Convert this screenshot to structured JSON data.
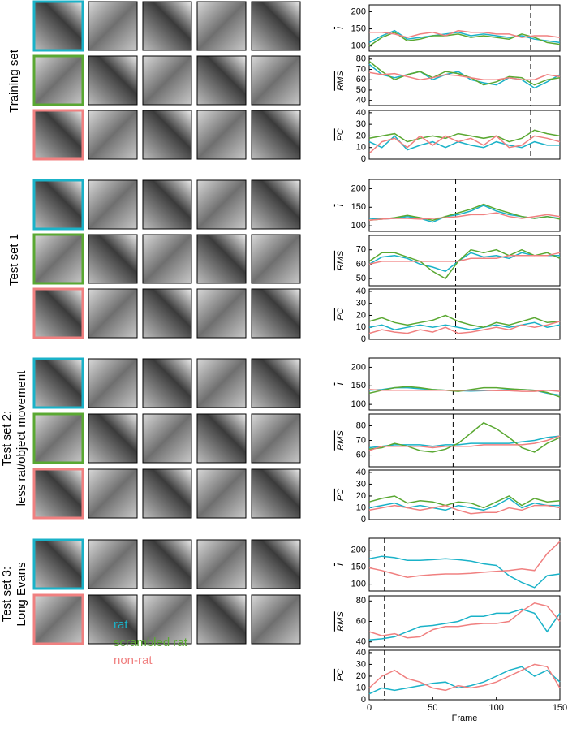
{
  "groups": [
    {
      "label": [
        "Training set"
      ],
      "borders": [
        "#1ab2c8",
        "#5aa832",
        "#f08080"
      ]
    },
    {
      "label": [
        "Test set 1"
      ],
      "borders": [
        "#1ab2c8",
        "#5aa832",
        "#f08080"
      ]
    },
    {
      "label": [
        "Test set 2:",
        "less rat/object movement"
      ],
      "borders": [
        "#1ab2c8",
        "#5aa832",
        "#f08080"
      ]
    },
    {
      "label": [
        "Test set 3:",
        "Long Evans"
      ],
      "borders": [
        "#1ab2c8",
        "#f08080"
      ]
    }
  ],
  "legend": {
    "items": [
      {
        "name": "rat",
        "color": "#1ab2c8"
      },
      {
        "name": "scrambled rat",
        "color": "#5aa832"
      },
      {
        "name": "non-rat",
        "color": "#f08080"
      }
    ]
  },
  "chart_data": [
    {
      "type": "line",
      "ylabel": "I",
      "x": [
        0,
        10,
        20,
        30,
        40,
        50,
        60,
        70,
        80,
        90,
        100,
        110,
        120,
        130,
        140,
        150
      ],
      "xlim": [
        0,
        150
      ],
      "ylim": [
        85,
        220
      ],
      "yticks": [
        100,
        150,
        200
      ],
      "markers": [
        127
      ],
      "series": [
        {
          "color": "#1ab2c8",
          "values": [
            110,
            130,
            145,
            120,
            125,
            130,
            135,
            140,
            130,
            135,
            130,
            125,
            130,
            120,
            115,
            110
          ]
        },
        {
          "color": "#5aa832",
          "values": [
            100,
            125,
            140,
            115,
            120,
            130,
            130,
            135,
            125,
            130,
            125,
            120,
            135,
            125,
            110,
            105
          ]
        },
        {
          "color": "#f08080",
          "values": [
            140,
            140,
            135,
            125,
            135,
            140,
            130,
            145,
            140,
            140,
            135,
            135,
            125,
            130,
            130,
            125
          ]
        }
      ]
    },
    {
      "type": "line",
      "ylabel": "RMS",
      "x": [
        0,
        10,
        20,
        30,
        40,
        50,
        60,
        70,
        80,
        90,
        100,
        110,
        120,
        130,
        140,
        150
      ],
      "xlim": [
        0,
        150
      ],
      "ylim": [
        35,
        83
      ],
      "yticks": [
        40,
        50,
        60,
        70,
        80
      ],
      "markers": [
        127
      ],
      "series": [
        {
          "color": "#1ab2c8",
          "values": [
            75,
            65,
            62,
            65,
            68,
            60,
            65,
            68,
            60,
            57,
            55,
            62,
            60,
            52,
            58,
            65
          ]
        },
        {
          "color": "#5aa832",
          "values": [
            78,
            68,
            60,
            65,
            68,
            62,
            68,
            66,
            62,
            55,
            58,
            63,
            62,
            55,
            60,
            62
          ]
        },
        {
          "color": "#f08080",
          "values": [
            67,
            65,
            66,
            63,
            60,
            62,
            65,
            64,
            62,
            60,
            60,
            62,
            60,
            60,
            65,
            63
          ]
        }
      ]
    },
    {
      "type": "line",
      "ylabel": "PC",
      "x": [
        0,
        10,
        20,
        30,
        40,
        50,
        60,
        70,
        80,
        90,
        100,
        110,
        120,
        130,
        140,
        150
      ],
      "xlim": [
        0,
        150
      ],
      "ylim": [
        0,
        42
      ],
      "yticks": [
        0,
        10,
        20,
        30,
        40
      ],
      "markers": [
        127
      ],
      "series": [
        {
          "color": "#1ab2c8",
          "values": [
            15,
            10,
            20,
            8,
            12,
            15,
            10,
            15,
            12,
            10,
            15,
            12,
            10,
            15,
            12,
            12
          ]
        },
        {
          "color": "#5aa832",
          "values": [
            18,
            20,
            22,
            15,
            18,
            20,
            18,
            22,
            20,
            18,
            20,
            15,
            18,
            25,
            22,
            20
          ]
        },
        {
          "color": "#f08080",
          "values": [
            5,
            15,
            18,
            10,
            20,
            12,
            20,
            15,
            18,
            12,
            20,
            10,
            12,
            20,
            18,
            15
          ]
        }
      ]
    },
    {
      "type": "line",
      "ylabel": "I",
      "x": [
        0,
        10,
        20,
        30,
        40,
        50,
        60,
        70,
        80,
        90,
        100,
        110,
        120,
        130,
        140,
        150
      ],
      "xlim": [
        0,
        150
      ],
      "ylim": [
        85,
        225
      ],
      "yticks": [
        100,
        150,
        200
      ],
      "markers": [
        68
      ],
      "series": [
        {
          "color": "#1ab2c8",
          "values": [
            120,
            118,
            120,
            125,
            120,
            110,
            125,
            130,
            140,
            155,
            140,
            130,
            125,
            120,
            125,
            120
          ]
        },
        {
          "color": "#5aa832",
          "values": [
            115,
            118,
            122,
            128,
            122,
            115,
            125,
            135,
            145,
            158,
            145,
            135,
            125,
            120,
            125,
            118
          ]
        },
        {
          "color": "#f08080",
          "values": [
            115,
            118,
            120,
            120,
            118,
            120,
            122,
            125,
            130,
            130,
            135,
            125,
            120,
            125,
            130,
            125
          ]
        }
      ]
    },
    {
      "type": "line",
      "ylabel": "RMS",
      "x": [
        0,
        10,
        20,
        30,
        40,
        50,
        60,
        70,
        80,
        90,
        100,
        110,
        120,
        130,
        140,
        150
      ],
      "xlim": [
        0,
        150
      ],
      "ylim": [
        45,
        80
      ],
      "yticks": [
        50,
        60,
        70
      ],
      "markers": [
        68
      ],
      "series": [
        {
          "color": "#1ab2c8",
          "values": [
            60,
            65,
            66,
            64,
            60,
            58,
            55,
            62,
            68,
            65,
            66,
            64,
            68,
            66,
            66,
            66
          ]
        },
        {
          "color": "#5aa832",
          "values": [
            62,
            68,
            68,
            65,
            62,
            55,
            50,
            62,
            70,
            68,
            70,
            66,
            70,
            66,
            68,
            64
          ]
        },
        {
          "color": "#f08080",
          "values": [
            60,
            62,
            62,
            62,
            62,
            62,
            62,
            62,
            64,
            64,
            64,
            66,
            66,
            66,
            66,
            68
          ]
        }
      ]
    },
    {
      "type": "line",
      "ylabel": "PC",
      "x": [
        0,
        10,
        20,
        30,
        40,
        50,
        60,
        70,
        80,
        90,
        100,
        110,
        120,
        130,
        140,
        150
      ],
      "xlim": [
        0,
        150
      ],
      "ylim": [
        0,
        42
      ],
      "yticks": [
        0,
        10,
        20,
        30,
        40
      ],
      "markers": [
        68
      ],
      "series": [
        {
          "color": "#1ab2c8",
          "values": [
            10,
            12,
            8,
            10,
            12,
            10,
            12,
            10,
            8,
            10,
            12,
            10,
            12,
            14,
            10,
            12
          ]
        },
        {
          "color": "#5aa832",
          "values": [
            15,
            18,
            14,
            12,
            14,
            16,
            20,
            15,
            12,
            10,
            14,
            12,
            15,
            18,
            14,
            15
          ]
        },
        {
          "color": "#f08080",
          "values": [
            5,
            8,
            6,
            5,
            8,
            6,
            10,
            5,
            6,
            8,
            10,
            8,
            12,
            10,
            12,
            15
          ]
        }
      ]
    },
    {
      "type": "line",
      "ylabel": "I",
      "x": [
        0,
        10,
        20,
        30,
        40,
        50,
        60,
        70,
        80,
        90,
        100,
        110,
        120,
        130,
        140,
        150
      ],
      "xlim": [
        0,
        150
      ],
      "ylim": [
        85,
        225
      ],
      "yticks": [
        100,
        150,
        200
      ],
      "markers": [
        66
      ],
      "series": [
        {
          "color": "#1ab2c8",
          "values": [
            138,
            140,
            145,
            145,
            142,
            140,
            138,
            137,
            136,
            137,
            138,
            140,
            140,
            138,
            130,
            125
          ]
        },
        {
          "color": "#5aa832",
          "values": [
            130,
            138,
            145,
            148,
            145,
            140,
            138,
            135,
            140,
            145,
            145,
            142,
            140,
            138,
            132,
            120
          ]
        },
        {
          "color": "#f08080",
          "values": [
            140,
            138,
            138,
            138,
            138,
            138,
            138,
            138,
            138,
            138,
            137,
            137,
            135,
            135,
            138,
            135
          ]
        }
      ]
    },
    {
      "type": "line",
      "ylabel": "RMS",
      "x": [
        0,
        10,
        20,
        30,
        40,
        50,
        60,
        70,
        80,
        90,
        100,
        110,
        120,
        130,
        140,
        150
      ],
      "xlim": [
        0,
        150
      ],
      "ylim": [
        52,
        88
      ],
      "yticks": [
        60,
        70,
        80
      ],
      "markers": [
        66
      ],
      "series": [
        {
          "color": "#1ab2c8",
          "values": [
            65,
            66,
            67,
            67,
            67,
            66,
            67,
            67,
            68,
            68,
            68,
            68,
            69,
            70,
            72,
            73
          ]
        },
        {
          "color": "#5aa832",
          "values": [
            64,
            65,
            68,
            66,
            63,
            62,
            64,
            68,
            75,
            82,
            78,
            72,
            65,
            62,
            68,
            72
          ]
        },
        {
          "color": "#f08080",
          "values": [
            63,
            66,
            66,
            66,
            66,
            65,
            66,
            66,
            66,
            67,
            67,
            67,
            67,
            68,
            70,
            73
          ]
        }
      ]
    },
    {
      "type": "line",
      "ylabel": "PC",
      "x": [
        0,
        10,
        20,
        30,
        40,
        50,
        60,
        70,
        80,
        90,
        100,
        110,
        120,
        130,
        140,
        150
      ],
      "xlim": [
        0,
        150
      ],
      "ylim": [
        0,
        42
      ],
      "yticks": [
        0,
        10,
        20,
        30,
        40
      ],
      "markers": [
        66
      ],
      "series": [
        {
          "color": "#1ab2c8",
          "values": [
            10,
            12,
            14,
            10,
            12,
            10,
            8,
            12,
            10,
            8,
            12,
            18,
            10,
            14,
            12,
            12
          ]
        },
        {
          "color": "#5aa832",
          "values": [
            15,
            18,
            20,
            14,
            16,
            15,
            12,
            15,
            14,
            10,
            15,
            20,
            12,
            18,
            15,
            16
          ]
        },
        {
          "color": "#f08080",
          "values": [
            8,
            10,
            12,
            10,
            8,
            10,
            12,
            8,
            5,
            6,
            6,
            10,
            8,
            12,
            12,
            10
          ]
        }
      ]
    },
    {
      "type": "line",
      "ylabel": "I",
      "x": [
        0,
        10,
        20,
        30,
        40,
        50,
        60,
        70,
        80,
        90,
        100,
        110,
        120,
        130,
        140,
        150
      ],
      "xlim": [
        0,
        150
      ],
      "ylim": [
        80,
        235
      ],
      "yticks": [
        100,
        150,
        200
      ],
      "markers": [
        12
      ],
      "series": [
        {
          "color": "#1ab2c8",
          "values": [
            175,
            182,
            178,
            170,
            170,
            172,
            175,
            172,
            168,
            160,
            155,
            125,
            105,
            90,
            125,
            130
          ]
        },
        {
          "color": "#f08080",
          "values": [
            148,
            140,
            130,
            120,
            125,
            128,
            130,
            130,
            132,
            135,
            138,
            140,
            145,
            140,
            190,
            225
          ]
        }
      ]
    },
    {
      "type": "line",
      "ylabel": "RMS",
      "x": [
        0,
        10,
        20,
        30,
        40,
        50,
        60,
        70,
        80,
        90,
        100,
        110,
        120,
        130,
        140,
        150
      ],
      "xlim": [
        0,
        150
      ],
      "ylim": [
        35,
        85
      ],
      "yticks": [
        40,
        60,
        80
      ],
      "markers": [
        12
      ],
      "series": [
        {
          "color": "#1ab2c8",
          "values": [
            42,
            43,
            45,
            50,
            55,
            56,
            58,
            60,
            65,
            65,
            68,
            68,
            72,
            68,
            50,
            68
          ]
        },
        {
          "color": "#f08080",
          "values": [
            50,
            46,
            48,
            44,
            45,
            52,
            55,
            55,
            57,
            58,
            58,
            60,
            70,
            78,
            75,
            60
          ]
        }
      ]
    },
    {
      "type": "line",
      "ylabel": "PC",
      "x": [
        0,
        10,
        20,
        30,
        40,
        50,
        60,
        70,
        80,
        90,
        100,
        110,
        120,
        130,
        140,
        150
      ],
      "xlim": [
        0,
        150
      ],
      "ylim": [
        0,
        42
      ],
      "yticks": [
        0,
        10,
        20,
        30,
        40
      ],
      "xticks": [
        0,
        50,
        100,
        150
      ],
      "xlabel": "Frame",
      "markers": [
        12
      ],
      "series": [
        {
          "color": "#1ab2c8",
          "values": [
            5,
            10,
            8,
            10,
            12,
            14,
            15,
            10,
            12,
            15,
            20,
            25,
            28,
            20,
            25,
            15
          ]
        },
        {
          "color": "#f08080",
          "values": [
            10,
            20,
            25,
            18,
            15,
            10,
            8,
            12,
            10,
            12,
            15,
            20,
            25,
            30,
            28,
            10
          ]
        }
      ]
    }
  ]
}
